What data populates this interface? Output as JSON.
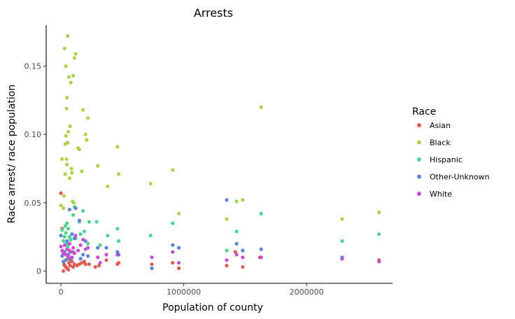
{
  "chart_data": {
    "type": "scatter",
    "title": "Arrests",
    "xlabel": "Population of county",
    "ylabel": "Race arrest/ race population",
    "xlim": [
      -120000,
      2700000
    ],
    "ylim": [
      -0.009,
      0.18
    ],
    "x_ticks": [
      {
        "value": 0,
        "label": "0"
      },
      {
        "value": 1000000,
        "label": "1000000"
      },
      {
        "value": 2000000,
        "label": "2000000"
      }
    ],
    "y_ticks": [
      {
        "value": 0,
        "label": "0"
      },
      {
        "value": 0.05,
        "label": "0.05"
      },
      {
        "value": 0.1,
        "label": "0.10"
      },
      {
        "value": 0.15,
        "label": "0.15"
      }
    ],
    "grid": false,
    "legend_title": "Race",
    "legend_position": "right",
    "series": [
      {
        "name": "Asian",
        "color": "#e05d55",
        "points": [
          [
            0,
            0.057
          ],
          [
            10000,
            0.031
          ],
          [
            20000,
            0.0
          ],
          [
            25000,
            0.005
          ],
          [
            30000,
            0.004
          ],
          [
            40000,
            0.003
          ],
          [
            50000,
            0.002
          ],
          [
            55000,
            0.009
          ],
          [
            60000,
            0.001
          ],
          [
            65000,
            0.006
          ],
          [
            70000,
            0.015
          ],
          [
            75000,
            0.004
          ],
          [
            80000,
            0.008
          ],
          [
            90000,
            0.007
          ],
          [
            100000,
            0.003
          ],
          [
            110000,
            0.005
          ],
          [
            130000,
            0.004
          ],
          [
            150000,
            0.005
          ],
          [
            170000,
            0.006
          ],
          [
            190000,
            0.007
          ],
          [
            200000,
            0.005
          ],
          [
            230000,
            0.005
          ],
          [
            280000,
            0.003
          ],
          [
            310000,
            0.004
          ],
          [
            370000,
            0.008
          ],
          [
            460000,
            0.005
          ],
          [
            470000,
            0.006
          ],
          [
            740000,
            0.005
          ],
          [
            910000,
            0.006
          ],
          [
            960000,
            0.002
          ],
          [
            1350000,
            0.004
          ],
          [
            1420000,
            0.014
          ],
          [
            1480000,
            0.003
          ],
          [
            1620000,
            0.01
          ],
          [
            2290000,
            0.009
          ],
          [
            2590000,
            0.008
          ]
        ]
      },
      {
        "name": "Black",
        "color": "#aad44a",
        "points": [
          [
            0,
            0.048
          ],
          [
            10000,
            0.082
          ],
          [
            20000,
            0.046
          ],
          [
            25000,
            0.055
          ],
          [
            30000,
            0.163
          ],
          [
            35000,
            0.071
          ],
          [
            40000,
            0.15
          ],
          [
            45000,
            0.119
          ],
          [
            50000,
            0.127
          ],
          [
            55000,
            0.172
          ],
          [
            60000,
            0.102
          ],
          [
            65000,
            0.142
          ],
          [
            70000,
            0.068
          ],
          [
            75000,
            0.106
          ],
          [
            80000,
            0.138
          ],
          [
            90000,
            0.072
          ],
          [
            100000,
            0.143
          ],
          [
            110000,
            0.156
          ],
          [
            120000,
            0.159
          ],
          [
            140000,
            0.09
          ],
          [
            150000,
            0.089
          ],
          [
            170000,
            0.073
          ],
          [
            180000,
            0.118
          ],
          [
            200000,
            0.1
          ],
          [
            210000,
            0.096
          ],
          [
            220000,
            0.112
          ],
          [
            300000,
            0.077
          ],
          [
            380000,
            0.062
          ],
          [
            460000,
            0.091
          ],
          [
            470000,
            0.071
          ],
          [
            730000,
            0.064
          ],
          [
            910000,
            0.074
          ],
          [
            960000,
            0.042
          ],
          [
            1350000,
            0.038
          ],
          [
            1430000,
            0.051
          ],
          [
            1480000,
            0.052
          ],
          [
            1630000,
            0.12
          ],
          [
            2290000,
            0.038
          ],
          [
            2590000,
            0.043
          ],
          [
            35000,
            0.093
          ],
          [
            40000,
            0.099
          ],
          [
            45000,
            0.082
          ],
          [
            50000,
            0.078
          ],
          [
            55000,
            0.094
          ],
          [
            85000,
            0.075
          ],
          [
            95000,
            0.051
          ],
          [
            105000,
            0.05
          ]
        ]
      },
      {
        "name": "Hispanic",
        "color": "#4fd394",
        "points": [
          [
            10000,
            0.03
          ],
          [
            20000,
            0.022
          ],
          [
            30000,
            0.025
          ],
          [
            35000,
            0.033
          ],
          [
            40000,
            0.028
          ],
          [
            45000,
            0.02
          ],
          [
            50000,
            0.035
          ],
          [
            55000,
            0.018
          ],
          [
            60000,
            0.031
          ],
          [
            70000,
            0.025
          ],
          [
            80000,
            0.023
          ],
          [
            90000,
            0.027
          ],
          [
            100000,
            0.041
          ],
          [
            110000,
            0.047
          ],
          [
            120000,
            0.024
          ],
          [
            150000,
            0.036
          ],
          [
            160000,
            0.027
          ],
          [
            180000,
            0.044
          ],
          [
            190000,
            0.029
          ],
          [
            220000,
            0.02
          ],
          [
            230000,
            0.036
          ],
          [
            290000,
            0.036
          ],
          [
            320000,
            0.019
          ],
          [
            380000,
            0.026
          ],
          [
            460000,
            0.031
          ],
          [
            470000,
            0.022
          ],
          [
            730000,
            0.026
          ],
          [
            910000,
            0.035
          ],
          [
            960000,
            0.017
          ],
          [
            1350000,
            0.015
          ],
          [
            1430000,
            0.029
          ],
          [
            1480000,
            0.015
          ],
          [
            1630000,
            0.042
          ],
          [
            2290000,
            0.022
          ],
          [
            2590000,
            0.027
          ]
        ]
      },
      {
        "name": "Other-Unknown",
        "color": "#5b84d6",
        "points": [
          [
            0,
            0.026
          ],
          [
            10000,
            0.011
          ],
          [
            20000,
            0.007
          ],
          [
            30000,
            0.014
          ],
          [
            40000,
            0.008
          ],
          [
            50000,
            0.022
          ],
          [
            60000,
            0.012
          ],
          [
            70000,
            0.045
          ],
          [
            80000,
            0.009
          ],
          [
            90000,
            0.027
          ],
          [
            100000,
            0.014
          ],
          [
            110000,
            0.024
          ],
          [
            120000,
            0.046
          ],
          [
            150000,
            0.037
          ],
          [
            160000,
            0.009
          ],
          [
            180000,
            0.012
          ],
          [
            200000,
            0.022
          ],
          [
            220000,
            0.011
          ],
          [
            300000,
            0.017
          ],
          [
            370000,
            0.017
          ],
          [
            460000,
            0.014
          ],
          [
            470000,
            0.012
          ],
          [
            740000,
            0.002
          ],
          [
            910000,
            0.019
          ],
          [
            960000,
            0.017
          ],
          [
            1350000,
            0.052
          ],
          [
            1430000,
            0.02
          ],
          [
            1480000,
            0.015
          ],
          [
            1630000,
            0.016
          ],
          [
            2290000,
            0.01
          ],
          [
            2590000,
            0.007
          ]
        ]
      },
      {
        "name": "White",
        "color": "#c44fd6",
        "points": [
          [
            0,
            0.018
          ],
          [
            10000,
            0.015
          ],
          [
            20000,
            0.013
          ],
          [
            30000,
            0.019
          ],
          [
            40000,
            0.012
          ],
          [
            50000,
            0.016
          ],
          [
            60000,
            0.011
          ],
          [
            70000,
            0.02
          ],
          [
            80000,
            0.014
          ],
          [
            90000,
            0.01
          ],
          [
            100000,
            0.017
          ],
          [
            110000,
            0.013
          ],
          [
            120000,
            0.026
          ],
          [
            140000,
            0.015
          ],
          [
            160000,
            0.019
          ],
          [
            180000,
            0.023
          ],
          [
            200000,
            0.016
          ],
          [
            220000,
            0.017
          ],
          [
            300000,
            0.01
          ],
          [
            320000,
            0.006
          ],
          [
            370000,
            0.012
          ],
          [
            460000,
            0.012
          ],
          [
            740000,
            0.01
          ],
          [
            910000,
            0.014
          ],
          [
            960000,
            0.006
          ],
          [
            1350000,
            0.008
          ],
          [
            1430000,
            0.012
          ],
          [
            1480000,
            0.01
          ],
          [
            1630000,
            0.01
          ],
          [
            2290000,
            0.009
          ],
          [
            2590000,
            0.007
          ]
        ]
      }
    ]
  }
}
